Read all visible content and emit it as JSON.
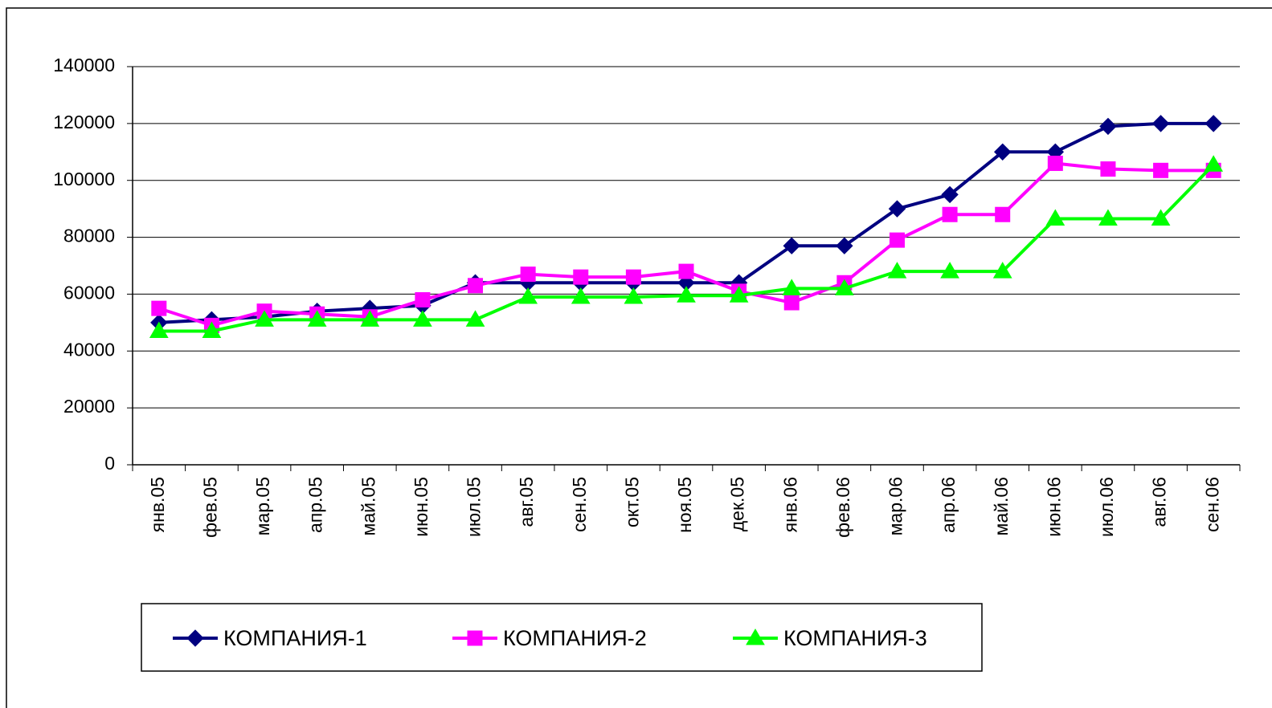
{
  "chart_data": {
    "type": "line",
    "categories": [
      "янв.05",
      "фев.05",
      "мар.05",
      "апр.05",
      "май.05",
      "июн.05",
      "июл.05",
      "авг.05",
      "сен.05",
      "окт.05",
      "ноя.05",
      "дек.05",
      "янв.06",
      "фев.06",
      "мар.06",
      "апр.06",
      "май.06",
      "июн.06",
      "июл.06",
      "авг.06",
      "сен.06"
    ],
    "series": [
      {
        "name": "КОМПАНИЯ-1",
        "color": "#000080",
        "marker": "diamond",
        "values": [
          50000,
          51000,
          52000,
          54000,
          55000,
          56000,
          64000,
          64000,
          64000,
          64000,
          64000,
          64000,
          77000,
          77000,
          90000,
          95000,
          110000,
          110000,
          119000,
          120000,
          120000
        ]
      },
      {
        "name": "КОМПАНИЯ-2",
        "color": "#ff00ff",
        "marker": "square",
        "values": [
          55000,
          49000,
          54000,
          53000,
          52000,
          58000,
          63000,
          67000,
          66000,
          66000,
          68000,
          61000,
          57000,
          64000,
          79000,
          88000,
          88000,
          106000,
          104000,
          103500,
          103500
        ]
      },
      {
        "name": "КОМПАНИЯ-3",
        "color": "#00ff00",
        "marker": "triangle",
        "values": [
          47000,
          47000,
          51000,
          51000,
          51000,
          51000,
          51000,
          59000,
          59000,
          59000,
          59500,
          59500,
          62000,
          62000,
          68000,
          68000,
          68000,
          86500,
          86500,
          86500,
          105500
        ]
      }
    ],
    "ylim": [
      0,
      140000
    ],
    "yticks": [
      0,
      20000,
      40000,
      60000,
      80000,
      100000,
      120000,
      140000
    ],
    "grid": true,
    "legend": "bottom"
  }
}
